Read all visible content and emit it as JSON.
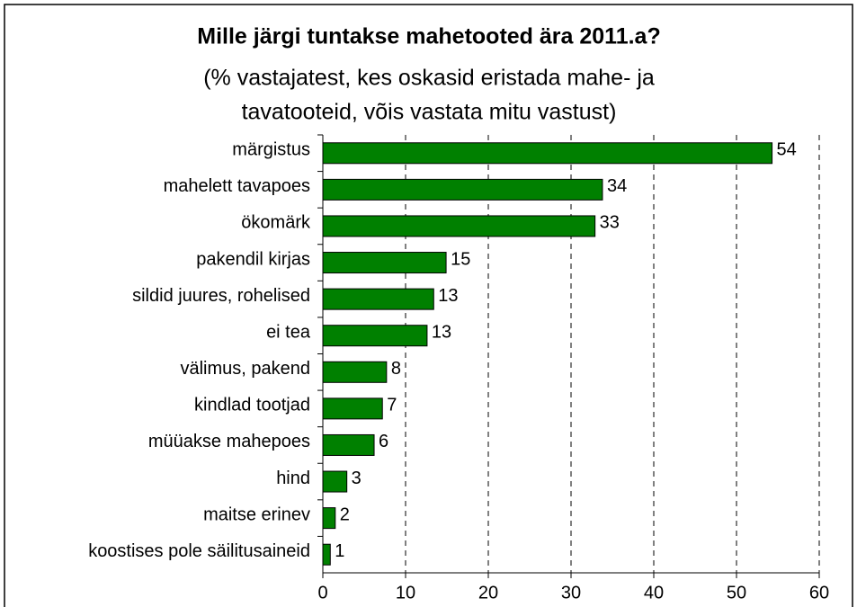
{
  "chart_data": {
    "type": "barh",
    "title": "Mille järgi tuntakse mahetooted ära 2011.a?",
    "subtitle": [
      "(% vastajatest, kes oskasid eristada mahe- ja",
      "tavatooteid, võis vastata mitu vastust)"
    ],
    "categories": [
      "märgistus",
      "mahelett tavapoes",
      "ökomärk",
      "pakendil kirjas",
      "sildid juures, rohelised",
      "ei tea",
      "välimus, pakend",
      "kindlad tootjad",
      "müüakse mahepoes",
      "hind",
      "maitse erinev",
      "koostises pole säilitusaineid"
    ],
    "values": [
      54.3,
      33.8,
      32.9,
      14.9,
      13.4,
      12.6,
      7.7,
      7.2,
      6.2,
      2.9,
      1.5,
      0.9
    ],
    "value_labels": [
      "54",
      "34",
      "33",
      "15",
      "13",
      "13",
      "8",
      "7",
      "6",
      "3",
      "2",
      "1"
    ],
    "color": "#008000",
    "xlim": [
      0,
      60
    ],
    "xticks": [
      0,
      10,
      20,
      30,
      40,
      50,
      60
    ],
    "grid": true
  }
}
